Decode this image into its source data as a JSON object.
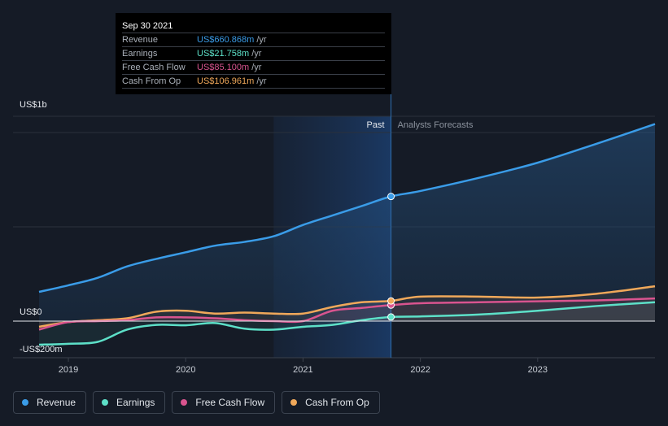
{
  "tooltip": {
    "date": "Sep 30 2021",
    "rows": [
      {
        "label": "Revenue",
        "value": "US$660.868m",
        "unit": "/yr",
        "color": "#3a9ce8"
      },
      {
        "label": "Earnings",
        "value": "US$21.758m",
        "unit": "/yr",
        "color": "#5de0c8"
      },
      {
        "label": "Free Cash Flow",
        "value": "US$85.100m",
        "unit": "/yr",
        "color": "#d9548f"
      },
      {
        "label": "Cash From Op",
        "value": "US$106.961m",
        "unit": "/yr",
        "color": "#f0a85a"
      }
    ]
  },
  "legend": [
    {
      "label": "Revenue",
      "color": "#3a9ce8"
    },
    {
      "label": "Earnings",
      "color": "#5de0c8"
    },
    {
      "label": "Free Cash Flow",
      "color": "#d9548f"
    },
    {
      "label": "Cash From Op",
      "color": "#f0a85a"
    }
  ],
  "chart_data": {
    "type": "line",
    "title": "",
    "ylabel_top": "US$1b",
    "ylabel_zero": "US$0",
    "ylabel_bottom": "-US$200m",
    "past_label": "Past",
    "forecast_label": "Analysts Forecasts",
    "past_shade_start": 2020.75,
    "split_date": 2021.75,
    "xlim": [
      2018.55,
      2024.0
    ],
    "ylim": [
      -200,
      1000
    ],
    "xticks": [
      {
        "value": 2019,
        "label": "2019"
      },
      {
        "value": 2020,
        "label": "2020"
      },
      {
        "value": 2021,
        "label": "2021"
      },
      {
        "value": 2022,
        "label": "2022"
      },
      {
        "value": 2023,
        "label": "2023"
      }
    ],
    "series": [
      {
        "name": "Revenue",
        "color": "#3a9ce8",
        "fill": true,
        "x": [
          2018.75,
          2019.0,
          2019.25,
          2019.5,
          2019.75,
          2020.0,
          2020.25,
          2020.5,
          2020.75,
          2021.0,
          2021.25,
          2021.5,
          2021.75,
          2022.0,
          2022.5,
          2023.0,
          2023.5,
          2024.0
        ],
        "y": [
          155,
          190,
          230,
          290,
          330,
          365,
          400,
          420,
          450,
          510,
          560,
          610,
          661,
          690,
          760,
          840,
          940,
          1045
        ]
      },
      {
        "name": "Earnings",
        "color": "#5de0c8",
        "fill": false,
        "x": [
          2018.75,
          2019.0,
          2019.25,
          2019.5,
          2019.75,
          2020.0,
          2020.25,
          2020.5,
          2020.75,
          2021.0,
          2021.25,
          2021.5,
          2021.75,
          2022.0,
          2022.5,
          2023.0,
          2023.5,
          2024.0
        ],
        "y": [
          -125,
          -120,
          -110,
          -45,
          -20,
          -22,
          -10,
          -40,
          -45,
          -30,
          -20,
          5,
          22,
          25,
          35,
          55,
          80,
          100
        ]
      },
      {
        "name": "Free Cash Flow",
        "color": "#d9548f",
        "fill": false,
        "x": [
          2018.75,
          2019.0,
          2019.25,
          2019.5,
          2019.75,
          2020.0,
          2020.25,
          2020.5,
          2020.75,
          2021.0,
          2021.25,
          2021.5,
          2021.75,
          2022.0,
          2022.5,
          2023.0,
          2023.5,
          2024.0
        ],
        "y": [
          -45,
          -5,
          0,
          5,
          20,
          20,
          15,
          5,
          0,
          0,
          55,
          70,
          85,
          95,
          100,
          105,
          110,
          120
        ]
      },
      {
        "name": "Cash From Op",
        "color": "#f0a85a",
        "fill": false,
        "x": [
          2018.75,
          2019.0,
          2019.25,
          2019.5,
          2019.75,
          2020.0,
          2020.25,
          2020.5,
          2020.75,
          2021.0,
          2021.25,
          2021.5,
          2021.75,
          2022.0,
          2022.5,
          2023.0,
          2023.5,
          2024.0
        ],
        "y": [
          -30,
          -5,
          5,
          15,
          50,
          55,
          40,
          45,
          40,
          40,
          75,
          100,
          107,
          130,
          130,
          125,
          145,
          185
        ]
      }
    ]
  }
}
